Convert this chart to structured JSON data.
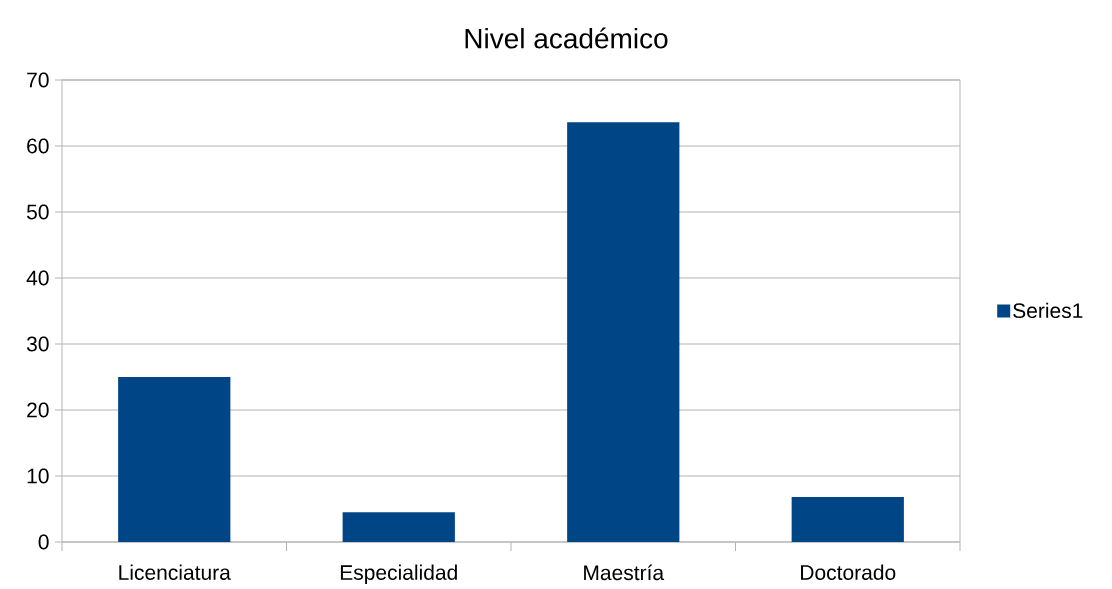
{
  "chart_data": {
    "type": "bar",
    "title": "Nivel académico",
    "categories": [
      "Licenciatura",
      "Especialidad",
      "Maestría",
      "Doctorado"
    ],
    "series": [
      {
        "name": "Series1",
        "color": "#004586",
        "values": [
          25,
          4.5,
          63.6,
          6.8
        ]
      }
    ],
    "ylim": [
      0,
      70
    ],
    "yticks": [
      0,
      10,
      20,
      30,
      40,
      50,
      60,
      70
    ],
    "grid": "y",
    "legend": "right"
  }
}
